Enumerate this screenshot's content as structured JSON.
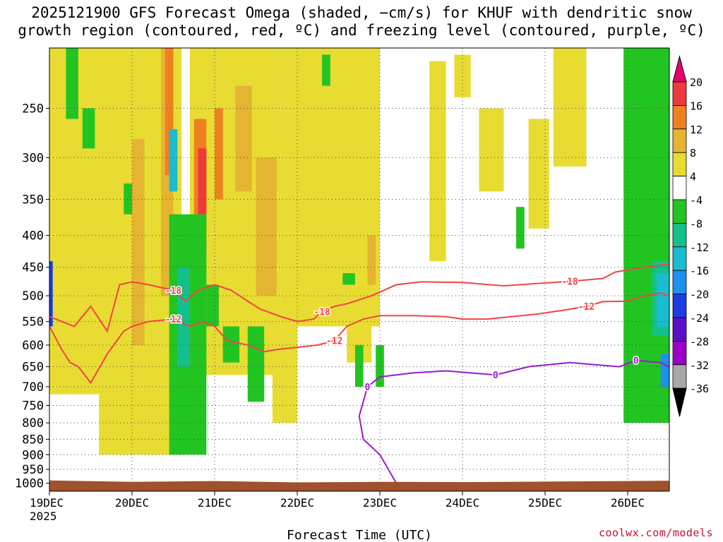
{
  "title_line1": "2025121900 GFS Forecast Omega (shaded, −cm/s) for KHUF with dendritic snow",
  "title_line2": "growth region (contoured, red, ºC) and freezing level (contoured, purple, ºC)",
  "credit": "coolwx.com/models",
  "chart_data": {
    "type": "heatmap",
    "title": "2025121900 GFS Forecast Omega (shaded, −cm/s) for KHUF with dendritic snow growth region (contoured, red, ºC) and freezing level (contoured, purple, ºC)",
    "xlabel": "Forecast Time (UTC)",
    "ylabel": "",
    "x_range": [
      "2025-12-19 00Z",
      "2025-12-26 18Z"
    ],
    "x_ticks": [
      {
        "label": "19DEC",
        "sublabel": "2025",
        "day": 0
      },
      {
        "label": "20DEC",
        "day": 1
      },
      {
        "label": "21DEC",
        "day": 2
      },
      {
        "label": "22DEC",
        "day": 3
      },
      {
        "label": "23DEC",
        "day": 4
      },
      {
        "label": "24DEC",
        "day": 5
      },
      {
        "label": "25DEC",
        "day": 6
      },
      {
        "label": "26DEC",
        "day": 7
      }
    ],
    "y_scale": "log-pressure",
    "y_units": "hPa",
    "y_range": [
      1030,
      200
    ],
    "y_ticks": [
      250,
      300,
      350,
      400,
      450,
      500,
      550,
      600,
      650,
      700,
      750,
      800,
      850,
      900,
      950,
      1000
    ],
    "grid": true,
    "colorbar": {
      "labels": [
        "20",
        "16",
        "12",
        "8",
        "4",
        "-4",
        "-8",
        "-12",
        "-16",
        "-20",
        "-24",
        "-28",
        "-32",
        "-36"
      ],
      "bins": [
        {
          "min": 20,
          "max": null,
          "color": "#e8006f"
        },
        {
          "min": 16,
          "max": 20,
          "color": "#f0393a"
        },
        {
          "min": 12,
          "max": 16,
          "color": "#ef8020"
        },
        {
          "min": 8,
          "max": 12,
          "color": "#e5b531"
        },
        {
          "min": 4,
          "max": 8,
          "color": "#e8dc33"
        },
        {
          "min": -4,
          "max": 4,
          "color": "#ffffff"
        },
        {
          "min": -8,
          "max": -4,
          "color": "#22c422"
        },
        {
          "min": -12,
          "max": -8,
          "color": "#13c08c"
        },
        {
          "min": -16,
          "max": -12,
          "color": "#1bbcd0"
        },
        {
          "min": -20,
          "max": -16,
          "color": "#1e90ee"
        },
        {
          "min": -24,
          "max": -20,
          "color": "#1a3ce0"
        },
        {
          "min": -28,
          "max": -24,
          "color": "#5a10c8"
        },
        {
          "min": -32,
          "max": -28,
          "color": "#9a00c8"
        },
        {
          "min": -36,
          "max": -32,
          "color": "#a8a8a8"
        },
        {
          "min": null,
          "max": -36,
          "color": "#000000"
        }
      ]
    },
    "shading_regions": [
      {
        "bin": "4",
        "x": [
          0.0,
          0.9
        ],
        "p": [
          200,
          720
        ]
      },
      {
        "bin": "4",
        "x": [
          0.6,
          1.6
        ],
        "p": [
          200,
          900
        ]
      },
      {
        "bin": "4",
        "x": [
          1.7,
          2.8
        ],
        "p": [
          200,
          670
        ]
      },
      {
        "bin": "4",
        "x": [
          2.8,
          4.0
        ],
        "p": [
          200,
          560
        ]
      },
      {
        "bin": "4",
        "x": [
          2.7,
          3.0
        ],
        "p": [
          560,
          800
        ]
      },
      {
        "bin": "4",
        "x": [
          3.6,
          3.9
        ],
        "p": [
          380,
          640
        ]
      },
      {
        "bin": "4",
        "x": [
          4.6,
          4.8
        ],
        "p": [
          210,
          440
        ]
      },
      {
        "bin": "4",
        "x": [
          4.9,
          5.1
        ],
        "p": [
          205,
          240
        ]
      },
      {
        "bin": "4",
        "x": [
          5.2,
          5.5
        ],
        "p": [
          250,
          340
        ]
      },
      {
        "bin": "4",
        "x": [
          5.8,
          6.05
        ],
        "p": [
          260,
          390
        ]
      },
      {
        "bin": "4",
        "x": [
          6.1,
          6.5
        ],
        "p": [
          200,
          310
        ]
      },
      {
        "bin": "4",
        "x": [
          7.4,
          7.6
        ],
        "p": [
          540,
          760
        ]
      },
      {
        "bin": "4",
        "x": [
          7.6,
          7.8
        ],
        "p": [
          200,
          280
        ]
      },
      {
        "bin": "8",
        "x": [
          1.0,
          1.15
        ],
        "p": [
          280,
          600
        ]
      },
      {
        "bin": "8",
        "x": [
          1.35,
          1.5
        ],
        "p": [
          200,
          500
        ]
      },
      {
        "bin": "8",
        "x": [
          2.25,
          2.45
        ],
        "p": [
          230,
          340
        ]
      },
      {
        "bin": "8",
        "x": [
          2.5,
          2.75
        ],
        "p": [
          300,
          500
        ]
      },
      {
        "bin": "8",
        "x": [
          3.85,
          3.95
        ],
        "p": [
          400,
          480
        ]
      },
      {
        "bin": "12",
        "x": [
          1.4,
          1.5
        ],
        "p": [
          200,
          320
        ]
      },
      {
        "bin": "12",
        "x": [
          1.75,
          1.9
        ],
        "p": [
          260,
          430
        ]
      },
      {
        "bin": "12",
        "x": [
          2.0,
          2.1
        ],
        "p": [
          250,
          350
        ]
      },
      {
        "bin": "16",
        "x": [
          1.8,
          1.9
        ],
        "p": [
          290,
          370
        ]
      },
      {
        "bin": "-4",
        "x": [
          0.2,
          0.35
        ],
        "p": [
          200,
          260
        ]
      },
      {
        "bin": "-4",
        "x": [
          0.4,
          0.55
        ],
        "p": [
          250,
          290
        ]
      },
      {
        "bin": "-4",
        "x": [
          0.9,
          1.0
        ],
        "p": [
          330,
          370
        ]
      },
      {
        "bin": "-4",
        "x": [
          1.45,
          1.9
        ],
        "p": [
          370,
          900
        ]
      },
      {
        "bin": "-4",
        "x": [
          1.9,
          2.05
        ],
        "p": [
          480,
          560
        ]
      },
      {
        "bin": "-4",
        "x": [
          2.1,
          2.3
        ],
        "p": [
          560,
          640
        ]
      },
      {
        "bin": "-4",
        "x": [
          2.4,
          2.6
        ],
        "p": [
          560,
          740
        ]
      },
      {
        "bin": "-4",
        "x": [
          3.3,
          3.4
        ],
        "p": [
          205,
          230
        ]
      },
      {
        "bin": "-4",
        "x": [
          3.55,
          3.7
        ],
        "p": [
          460,
          480
        ]
      },
      {
        "bin": "-4",
        "x": [
          3.7,
          3.8
        ],
        "p": [
          600,
          700
        ]
      },
      {
        "bin": "-4",
        "x": [
          3.95,
          4.05
        ],
        "p": [
          600,
          700
        ]
      },
      {
        "bin": "-4",
        "x": [
          5.65,
          5.75
        ],
        "p": [
          360,
          420
        ]
      },
      {
        "bin": "-4",
        "x": [
          6.95,
          7.7
        ],
        "p": [
          200,
          800
        ]
      },
      {
        "bin": "-8",
        "x": [
          1.55,
          1.7
        ],
        "p": [
          450,
          650
        ]
      },
      {
        "bin": "-8",
        "x": [
          7.3,
          7.6
        ],
        "p": [
          440,
          580
        ]
      },
      {
        "bin": "-12",
        "x": [
          1.45,
          1.55
        ],
        "p": [
          270,
          340
        ]
      },
      {
        "bin": "-12",
        "x": [
          7.35,
          7.55
        ],
        "p": [
          460,
          560
        ]
      },
      {
        "bin": "-16",
        "x": [
          7.4,
          7.5
        ],
        "p": [
          620,
          700
        ]
      },
      {
        "bin": "-20",
        "x": [
          0.0,
          0.04
        ],
        "p": [
          440,
          560
        ]
      }
    ],
    "contours": [
      {
        "name": "dendritic snow growth region",
        "color": "#f04545",
        "levels": [
          {
            "value": -18,
            "label": "-18",
            "points": [
              [
                0.0,
                540
              ],
              [
                0.3,
                560
              ],
              [
                0.5,
                520
              ],
              [
                0.7,
                570
              ],
              [
                0.85,
                480
              ],
              [
                1.0,
                475
              ],
              [
                1.2,
                480
              ],
              [
                1.5,
                490
              ],
              [
                1.65,
                510
              ],
              [
                1.8,
                490
              ],
              [
                2.0,
                480
              ],
              [
                2.2,
                490
              ],
              [
                2.4,
                510
              ],
              [
                2.55,
                525
              ],
              [
                2.8,
                540
              ],
              [
                3.0,
                550
              ],
              [
                3.2,
                545
              ],
              [
                3.3,
                530
              ],
              [
                3.45,
                520
              ],
              [
                3.6,
                515
              ],
              [
                3.9,
                500
              ],
              [
                4.2,
                480
              ],
              [
                4.5,
                475
              ],
              [
                5.0,
                476
              ],
              [
                5.5,
                482
              ],
              [
                5.9,
                478
              ],
              [
                6.3,
                474
              ],
              [
                6.7,
                469
              ],
              [
                6.85,
                458
              ],
              [
                7.2,
                450
              ],
              [
                7.5,
                445
              ],
              [
                7.8,
                455
              ]
            ]
          },
          {
            "value": -12,
            "label": "-12",
            "points": [
              [
                0.0,
                560
              ],
              [
                0.15,
                610
              ],
              [
                0.25,
                640
              ],
              [
                0.35,
                650
              ],
              [
                0.5,
                690
              ],
              [
                0.7,
                620
              ],
              [
                0.9,
                570
              ],
              [
                1.0,
                560
              ],
              [
                1.2,
                550
              ],
              [
                1.5,
                545
              ],
              [
                1.7,
                560
              ],
              [
                1.85,
                550
              ],
              [
                2.0,
                560
              ],
              [
                2.15,
                590
              ],
              [
                2.4,
                600
              ],
              [
                2.6,
                615
              ],
              [
                2.75,
                610
              ],
              [
                3.0,
                605
              ],
              [
                3.25,
                600
              ],
              [
                3.45,
                590
              ],
              [
                3.6,
                560
              ],
              [
                3.8,
                545
              ],
              [
                4.0,
                538
              ],
              [
                4.4,
                538
              ],
              [
                4.8,
                540
              ],
              [
                5.0,
                545
              ],
              [
                5.3,
                545
              ],
              [
                5.6,
                540
              ],
              [
                5.9,
                535
              ],
              [
                6.2,
                528
              ],
              [
                6.5,
                520
              ],
              [
                6.7,
                511
              ],
              [
                7.0,
                510
              ],
              [
                7.2,
                500
              ],
              [
                7.4,
                495
              ],
              [
                7.6,
                505
              ],
              [
                7.8,
                510
              ]
            ]
          }
        ]
      },
      {
        "name": "freezing level",
        "color": "#9a1ad0",
        "levels": [
          {
            "value": 0,
            "label": "0",
            "points": [
              [
                4.2,
                1000
              ],
              [
                4.0,
                900
              ],
              [
                3.8,
                850
              ],
              [
                3.75,
                780
              ],
              [
                3.85,
                700
              ],
              [
                4.0,
                675
              ],
              [
                4.4,
                665
              ],
              [
                4.8,
                660
              ],
              [
                5.1,
                665
              ],
              [
                5.4,
                670
              ],
              [
                5.8,
                650
              ],
              [
                6.3,
                640
              ],
              [
                6.6,
                645
              ],
              [
                6.9,
                650
              ],
              [
                7.1,
                635
              ],
              [
                7.4,
                640
              ],
              [
                7.6,
                660
              ],
              [
                7.8,
                670
              ]
            ]
          }
        ]
      }
    ]
  }
}
